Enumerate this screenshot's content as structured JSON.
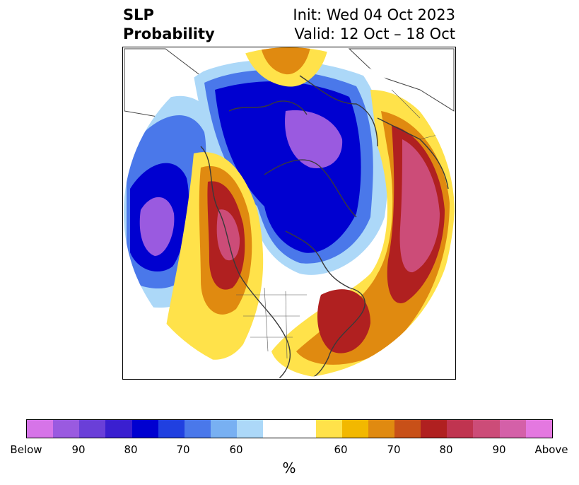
{
  "title": {
    "left_line1": "SLP",
    "left_line2": "Probability",
    "right_line1": "Init: Wed 04 Oct 2023",
    "right_line2": "Valid: 12 Oct – 18 Oct"
  },
  "colorbar": {
    "unit": "%",
    "colors": [
      "#d674e8",
      "#9a5ae0",
      "#6a3fd8",
      "#3a1fd0",
      "#0000d0",
      "#2040e0",
      "#4a78ea",
      "#78b0f2",
      "#acd8f8",
      "#ffffff",
      "#ffffff",
      "#ffe24a",
      "#f2b800",
      "#e08a10",
      "#c85018",
      "#b02020",
      "#c03450",
      "#cc4c78",
      "#d460a8",
      "#e478e0"
    ],
    "ticks": [
      "Below",
      "90",
      "80",
      "70",
      "60",
      "60",
      "70",
      "80",
      "90",
      "Above"
    ]
  },
  "map_fields": [
    {
      "kind": "below",
      "level": "60",
      "color": "#acd8f8"
    },
    {
      "kind": "below",
      "level": "70",
      "color": "#4a78ea"
    },
    {
      "kind": "below",
      "level": "80",
      "color": "#0000d0"
    },
    {
      "kind": "below",
      "level": "90",
      "color": "#9a5ae0"
    },
    {
      "kind": "above",
      "level": "60",
      "color": "#ffe24a"
    },
    {
      "kind": "above",
      "level": "70",
      "color": "#e08a10"
    },
    {
      "kind": "above",
      "level": "80",
      "color": "#b02020"
    },
    {
      "kind": "above",
      "level": "90",
      "color": "#cc4c78"
    }
  ]
}
